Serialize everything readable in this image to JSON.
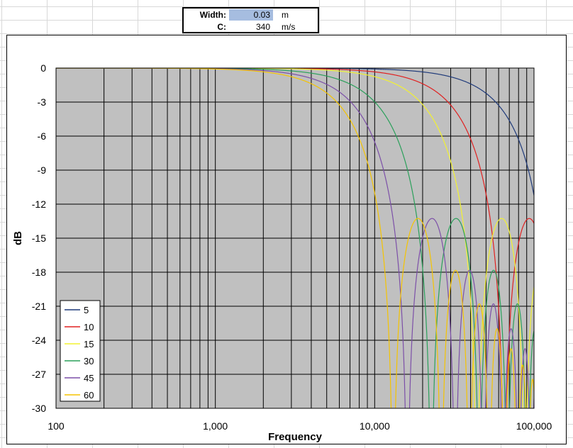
{
  "params": {
    "width_label": "Width:",
    "width_value": "0.03",
    "width_unit": "m",
    "c_label": "C:",
    "c_value": "340",
    "c_unit": "m/s"
  },
  "chart_data": {
    "type": "line",
    "title": "",
    "xlabel": "Frequency",
    "ylabel": "dB",
    "x_scale": "log",
    "xlim": [
      100,
      100000
    ],
    "ylim": [
      -30,
      0
    ],
    "x_tick_labels": [
      "100",
      "1,000",
      "10,000",
      "100,000"
    ],
    "y_ticks": [
      0,
      -3,
      -6,
      -9,
      -12,
      -15,
      -18,
      -21,
      -24,
      -27,
      -30
    ],
    "grid": true,
    "plot_background": "#c0c0c0",
    "legend_position": "bottom-left",
    "model": "20*log10(|sin(pi*f*width*sin(angle)/c)/(pi*f*width*sin(angle)/c)|), width 0.03 m, c 340 m/s",
    "series": [
      {
        "name": "5",
        "angle_deg": 5,
        "color": "#1f3a7a"
      },
      {
        "name": "10",
        "angle_deg": 10,
        "color": "#e02020"
      },
      {
        "name": "15",
        "angle_deg": 15,
        "color": "#f2f230"
      },
      {
        "name": "30",
        "angle_deg": 30,
        "color": "#2aa05a"
      },
      {
        "name": "45",
        "angle_deg": 45,
        "color": "#7c4fa8"
      },
      {
        "name": "60",
        "angle_deg": 60,
        "color": "#f5c400"
      }
    ]
  }
}
